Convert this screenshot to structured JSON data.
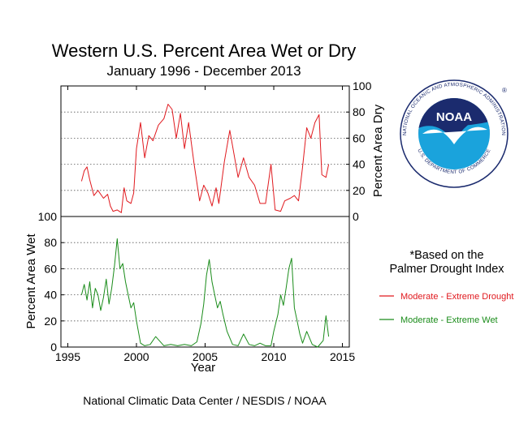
{
  "title": "Western U.S. Percent Area Wet or Dry",
  "subtitle": "January 1996 - December 2013",
  "credit": "National Climatic Data Center / NESDIS / NOAA",
  "note": [
    "*Based on the",
    "Palmer Drought Index"
  ],
  "logo": {
    "text": "NOAA",
    "ring_text": "NATIONAL OCEANIC AND ATMOSPHERIC ADMINISTRATION",
    "bottom_text": "U.S. DEPARTMENT OF COMMERCE",
    "registered": "®"
  },
  "colors": {
    "dry": "#e0191e",
    "wet": "#1a8c1a",
    "grid": "#555555",
    "logo_navy": "#1b2b6e",
    "logo_blue": "#1aa3dc"
  },
  "chart_data": {
    "type": "line",
    "x_axis": {
      "label": "Year",
      "range": [
        1994.5,
        2015.5
      ],
      "ticks": [
        1995,
        2000,
        2005,
        2010,
        2015
      ]
    },
    "top_panel": {
      "ylabel": "Percent Area Dry",
      "axis_side": "right",
      "ylim": [
        0,
        100
      ],
      "ticks": [
        0,
        20,
        40,
        60,
        80,
        100
      ],
      "series": {
        "name": "Moderate - Extreme Drought",
        "color": "#e0191e",
        "x": [
          1996.0,
          1996.2,
          1996.4,
          1996.6,
          1996.9,
          1997.2,
          1997.6,
          1997.9,
          1998.1,
          1998.3,
          1998.6,
          1998.9,
          1999.1,
          1999.3,
          1999.6,
          1999.8,
          2000.0,
          2000.3,
          2000.6,
          2000.9,
          2001.2,
          2001.6,
          2002.0,
          2002.3,
          2002.6,
          2002.9,
          2003.2,
          2003.5,
          2003.8,
          2004.2,
          2004.6,
          2004.9,
          2005.2,
          2005.5,
          2005.8,
          2006.0,
          2006.4,
          2006.8,
          2007.1,
          2007.4,
          2007.8,
          2008.2,
          2008.6,
          2009.0,
          2009.4,
          2009.8,
          2010.1,
          2010.5,
          2010.8,
          2011.2,
          2011.5,
          2011.8,
          2012.1,
          2012.4,
          2012.7,
          2013.0,
          2013.3,
          2013.5,
          2013.8,
          2014.0
        ],
        "y": [
          27,
          35,
          38,
          28,
          16,
          20,
          14,
          17,
          8,
          4,
          5,
          3,
          22,
          12,
          10,
          18,
          52,
          72,
          45,
          62,
          58,
          70,
          75,
          86,
          82,
          60,
          79,
          52,
          72,
          40,
          12,
          24,
          18,
          8,
          22,
          10,
          42,
          66,
          48,
          30,
          45,
          30,
          24,
          10,
          10,
          40,
          5,
          4,
          12,
          14,
          16,
          12,
          38,
          68,
          60,
          72,
          78,
          32,
          30,
          40
        ]
      }
    },
    "bottom_panel": {
      "ylabel": "Percent Area Wet",
      "axis_side": "left",
      "ylim": [
        0,
        100
      ],
      "ticks": [
        0,
        20,
        40,
        60,
        80,
        100
      ],
      "series": {
        "name": "Moderate - Extreme Wet",
        "color": "#1a8c1a",
        "x": [
          1996.0,
          1996.2,
          1996.4,
          1996.6,
          1996.8,
          1997.0,
          1997.2,
          1997.4,
          1997.6,
          1997.8,
          1998.0,
          1998.2,
          1998.4,
          1998.6,
          1998.8,
          1999.0,
          1999.2,
          1999.4,
          1999.6,
          1999.8,
          2000.0,
          2000.3,
          2000.6,
          2001.0,
          2001.4,
          2002.0,
          2002.5,
          2003.0,
          2003.5,
          2004.0,
          2004.4,
          2004.7,
          2004.9,
          2005.1,
          2005.3,
          2005.5,
          2005.7,
          2005.9,
          2006.1,
          2006.3,
          2006.6,
          2007.0,
          2007.4,
          2007.8,
          2008.2,
          2008.6,
          2009.0,
          2009.4,
          2009.8,
          2010.0,
          2010.3,
          2010.5,
          2010.7,
          2010.9,
          2011.1,
          2011.3,
          2011.5,
          2011.7,
          2011.9,
          2012.1,
          2012.4,
          2012.8,
          2013.2,
          2013.6,
          2013.8,
          2014.0
        ],
        "y": [
          40,
          48,
          36,
          50,
          30,
          45,
          40,
          28,
          38,
          52,
          33,
          45,
          62,
          83,
          60,
          64,
          50,
          40,
          30,
          34,
          20,
          3,
          1,
          2,
          8,
          1,
          2,
          1,
          2,
          1,
          4,
          18,
          33,
          55,
          67,
          50,
          40,
          30,
          35,
          25,
          12,
          2,
          1,
          10,
          2,
          1,
          3,
          1,
          1,
          12,
          25,
          40,
          32,
          45,
          60,
          68,
          30,
          20,
          10,
          3,
          12,
          2,
          0,
          5,
          24,
          8
        ]
      }
    },
    "legend": [
      "Moderate - Extreme Drought",
      "Moderate - Extreme Wet"
    ]
  }
}
